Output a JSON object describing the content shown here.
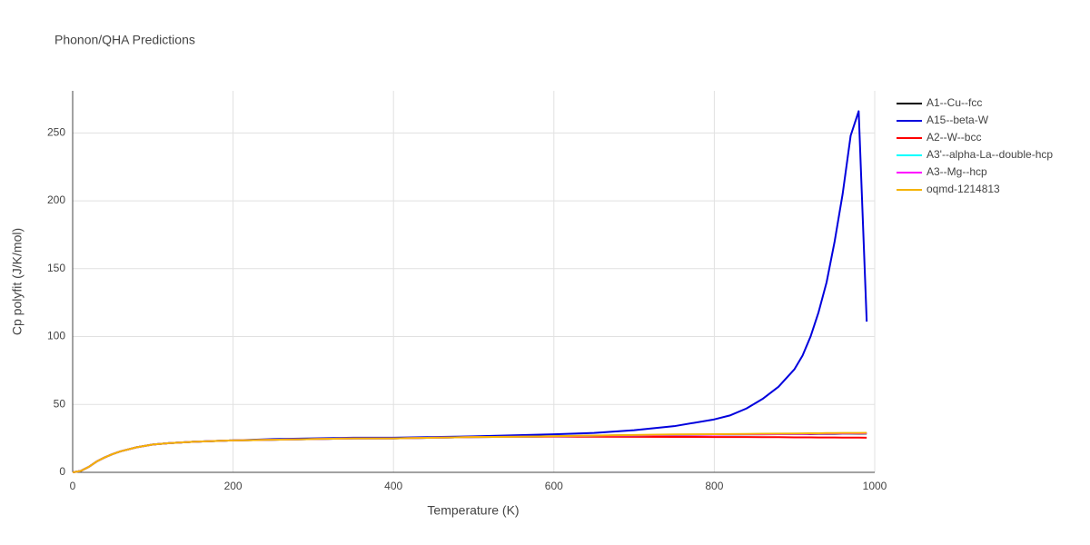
{
  "chart_data": {
    "type": "line",
    "title": "Phonon/QHA Predictions",
    "x_label": "Temperature (K)",
    "y_label": "Cp polyfit (J/K/mol)",
    "x": [
      0,
      10,
      20,
      30,
      40,
      50,
      60,
      80,
      100,
      120,
      150,
      200,
      250,
      300,
      350,
      400,
      450,
      500,
      550,
      600,
      650,
      700,
      750,
      800,
      820,
      840,
      860,
      880,
      900,
      910,
      920,
      930,
      940,
      950,
      960,
      970,
      980,
      990
    ],
    "xlim": [
      0,
      1000
    ],
    "ylim": [
      0,
      281
    ],
    "xticks": [
      0,
      200,
      400,
      600,
      800,
      1000
    ],
    "yticks": [
      0,
      50,
      100,
      150,
      200,
      250
    ],
    "grid": true,
    "legend": "right",
    "series": [
      {
        "name": "A1--Cu--fcc",
        "color": "#000000",
        "values": [
          0,
          1,
          4,
          8,
          11,
          13.5,
          15.5,
          18.5,
          20.5,
          21.5,
          22.5,
          23.5,
          24,
          24.5,
          25,
          25,
          25.5,
          26,
          26.2,
          26.5,
          27,
          27.3,
          27.6,
          27.8,
          27.9,
          28,
          28,
          28.1,
          28.2,
          28.2,
          28.2,
          28.3,
          28.3,
          28.3,
          28.4,
          28.4,
          28.4,
          28.5
        ]
      },
      {
        "name": "A15--beta-W",
        "color": "#0000dd",
        "values": [
          0,
          1,
          4,
          8,
          11,
          13.5,
          15.5,
          18.5,
          20.5,
          21.5,
          22.5,
          23.5,
          24.5,
          25,
          25.5,
          25.5,
          26,
          26.5,
          27.3,
          28,
          29,
          31,
          34,
          39,
          42,
          47,
          54,
          63,
          76,
          86,
          100,
          118,
          140,
          170,
          205,
          248,
          266,
          111
        ]
      },
      {
        "name": "A2--W--bcc",
        "color": "#ff0000",
        "values": [
          0,
          1,
          4,
          8,
          11,
          13.5,
          15.5,
          18.5,
          20.5,
          21.5,
          22.5,
          23.5,
          24,
          24.5,
          25,
          25,
          25.5,
          26,
          26.2,
          26.3,
          26.3,
          26.2,
          26.1,
          26,
          26,
          26,
          25.9,
          25.9,
          25.8,
          25.8,
          25.8,
          25.7,
          25.7,
          25.7,
          25.6,
          25.6,
          25.6,
          25.5
        ]
      },
      {
        "name": "A3'--alpha-La--double-hcp",
        "color": "#00ffff",
        "values": [
          0,
          1,
          4,
          8,
          11,
          13.5,
          15.5,
          18.5,
          20.5,
          21.5,
          22.5,
          23.5,
          24,
          24.5,
          25,
          25,
          25.5,
          26,
          26.2,
          26.5,
          27,
          27.3,
          27.6,
          27.8,
          27.9,
          28,
          28.1,
          28.2,
          28.3,
          28.3,
          28.4,
          28.4,
          28.5,
          28.5,
          28.6,
          28.6,
          28.7,
          28.7
        ]
      },
      {
        "name": "A3--Mg--hcp",
        "color": "#ff00ff",
        "values": [
          0,
          1,
          4,
          8,
          11,
          13.5,
          15.5,
          18.5,
          20.5,
          21.5,
          22.5,
          23.5,
          24,
          24.5,
          25,
          25,
          25.5,
          26,
          26.2,
          26.5,
          27,
          27.3,
          27.6,
          27.8,
          27.9,
          28,
          28.1,
          28.2,
          28.3,
          28.3,
          28.4,
          28.5,
          28.5,
          28.6,
          28.6,
          28.7,
          28.7,
          28.8
        ]
      },
      {
        "name": "oqmd-1214813",
        "color": "#f5b300",
        "values": [
          0,
          1,
          4,
          8,
          11,
          13.5,
          15.5,
          18.5,
          20.5,
          21.5,
          22.5,
          23.5,
          24,
          24.5,
          25,
          25,
          25.5,
          26,
          26.2,
          26.6,
          27.1,
          27.5,
          27.9,
          28.1,
          28.2,
          28.3,
          28.4,
          28.5,
          28.6,
          28.7,
          28.8,
          28.8,
          28.9,
          28.9,
          29,
          29,
          29,
          29.1
        ]
      }
    ]
  }
}
